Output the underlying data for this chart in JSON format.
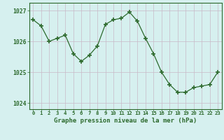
{
  "hours": [
    0,
    1,
    2,
    3,
    4,
    5,
    6,
    7,
    8,
    9,
    10,
    11,
    12,
    13,
    14,
    15,
    16,
    17,
    18,
    19,
    20,
    21,
    22,
    23
  ],
  "pressure": [
    1026.7,
    1026.5,
    1026.0,
    1026.1,
    1026.2,
    1025.6,
    1025.35,
    1025.55,
    1025.85,
    1026.55,
    1026.7,
    1026.75,
    1026.95,
    1026.65,
    1026.1,
    1025.6,
    1025.0,
    1024.6,
    1024.35,
    1024.35,
    1024.5,
    1024.55,
    1024.6,
    1025.0
  ],
  "line_color": "#2d6a2d",
  "marker_color": "#2d6a2d",
  "bg_color": "#d6f0ef",
  "grid_color_v": "#c8b8c8",
  "grid_color_h": "#c8b8c8",
  "axis_label_color": "#2d6a2d",
  "tick_color": "#2d6a2d",
  "xlabel": "Graphe pression niveau de la mer (hPa)",
  "ylim": [
    1023.8,
    1027.25
  ],
  "yticks": [
    1024,
    1025,
    1026,
    1027
  ],
  "xticks": [
    0,
    1,
    2,
    3,
    4,
    5,
    6,
    7,
    8,
    9,
    10,
    11,
    12,
    13,
    14,
    15,
    16,
    17,
    18,
    19,
    20,
    21,
    22,
    23
  ]
}
